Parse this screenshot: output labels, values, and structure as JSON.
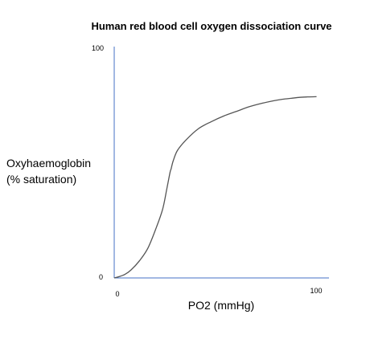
{
  "chart_data": {
    "type": "line",
    "title": "Human red blood cell oxygen dissociation curve",
    "xlabel": "PO2 (mmHg)",
    "ylabel_lines": [
      "Oxyhaemoglobin",
      "(% saturation)"
    ],
    "xlim": [
      0,
      100
    ],
    "ylim": [
      0,
      100
    ],
    "x_ticks": [
      "0",
      "100"
    ],
    "y_ticks": [
      "0",
      "100"
    ],
    "grid": false,
    "axis_color": "#4472c4",
    "line_color": "#555555",
    "series": [
      {
        "x": [
          0,
          2,
          5,
          8,
          12,
          16,
          20,
          23,
          25,
          26.5,
          27,
          28,
          30,
          34,
          40,
          46,
          52,
          58,
          64,
          70,
          76,
          80,
          84,
          88,
          92,
          96
        ],
        "y": [
          0,
          0.5,
          1.5,
          3.5,
          7.5,
          13,
          22,
          30,
          39,
          46,
          47.5,
          51,
          55.5,
          60,
          65,
          68,
          70.5,
          72.5,
          74.5,
          76,
          77.2,
          77.8,
          78.2,
          78.6,
          78.8,
          78.9
        ]
      }
    ]
  }
}
